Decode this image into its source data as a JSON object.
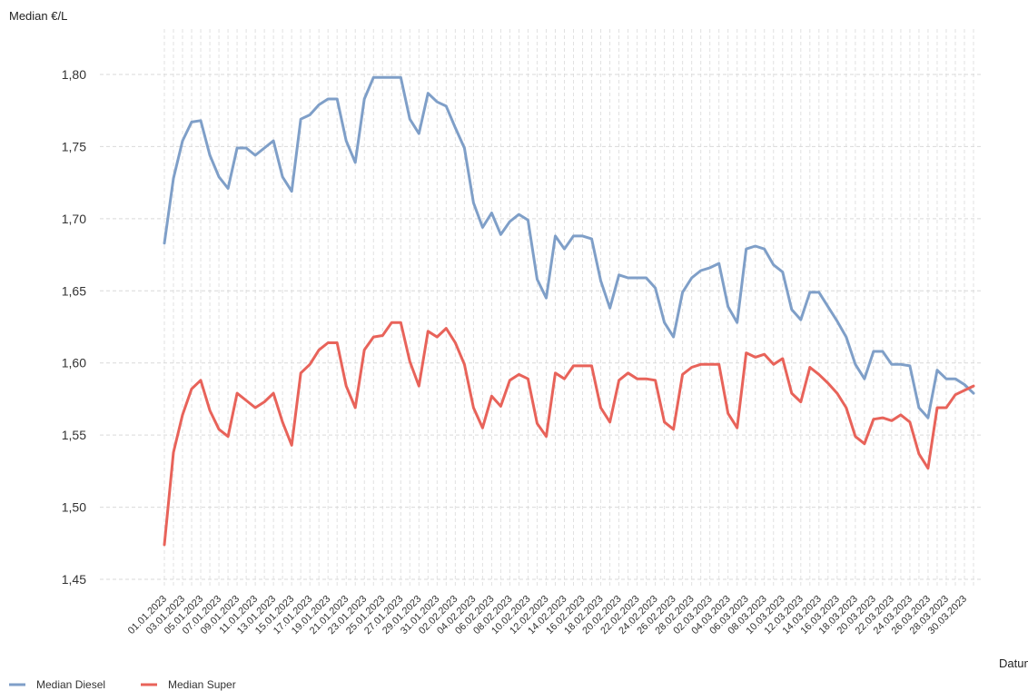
{
  "chart_data": {
    "type": "line",
    "title": "",
    "ylabel": "Median €/L",
    "xlabel": "Datum",
    "ylim": [
      1.45,
      1.8
    ],
    "yticks": [
      "1,45",
      "1,50",
      "1,55",
      "1,60",
      "1,65",
      "1,70",
      "1,75",
      "1,80"
    ],
    "ytick_values": [
      1.45,
      1.5,
      1.55,
      1.6,
      1.65,
      1.7,
      1.75,
      1.8
    ],
    "grid": true,
    "legend_position": "bottom-left",
    "x_start": "01.01.2023",
    "x_end": "31.03.2023",
    "x_tick_labels": [
      "01.01.2023",
      "03.01.2023",
      "05.01.2023",
      "07.01.2023",
      "09.01.2023",
      "11.01.2023",
      "13.01.2023",
      "15.01.2023",
      "17.01.2023",
      "19.01.2023",
      "21.01.2023",
      "23.01.2023",
      "25.01.2023",
      "27.01.2023",
      "29.01.2023",
      "31.01.2023",
      "02.02.2023",
      "04.02.2023",
      "06.02.2023",
      "08.02.2023",
      "10.02.2023",
      "12.02.2023",
      "14.02.2023",
      "16.02.2023",
      "18.02.2023",
      "20.02.2023",
      "22.02.2023",
      "24.02.2023",
      "26.02.2023",
      "28.02.2023",
      "02.03.2023",
      "04.03.2023",
      "06.03.2023",
      "08.03.2023",
      "10.03.2023",
      "12.03.2023",
      "14.03.2023",
      "16.03.2023",
      "18.03.2023",
      "20.03.2023",
      "22.03.2023",
      "24.03.2023",
      "26.03.2023",
      "28.03.2023",
      "30.03.2023"
    ],
    "series": [
      {
        "name": "Median Diesel",
        "color": "#7f9fc8",
        "values": [
          1.683,
          1.728,
          1.754,
          1.767,
          1.768,
          1.744,
          1.729,
          1.721,
          1.749,
          1.749,
          1.744,
          1.749,
          1.754,
          1.729,
          1.719,
          1.769,
          1.772,
          1.779,
          1.783,
          1.783,
          1.754,
          1.739,
          1.783,
          1.798,
          1.798,
          1.798,
          1.798,
          1.769,
          1.759,
          1.787,
          1.781,
          1.778,
          1.763,
          1.749,
          1.711,
          1.694,
          1.704,
          1.689,
          1.698,
          1.703,
          1.699,
          1.658,
          1.645,
          1.688,
          1.679,
          1.688,
          1.688,
          1.686,
          1.657,
          1.638,
          1.661,
          1.659,
          1.659,
          1.659,
          1.652,
          1.628,
          1.618,
          1.649,
          1.659,
          1.664,
          1.666,
          1.669,
          1.639,
          1.628,
          1.679,
          1.681,
          1.679,
          1.668,
          1.663,
          1.637,
          1.63,
          1.649,
          1.649,
          1.639,
          1.629,
          1.618,
          1.599,
          1.589,
          1.608,
          1.608,
          1.599,
          1.599,
          1.598,
          1.569,
          1.562,
          1.595,
          1.589,
          1.589,
          1.585,
          1.579
        ]
      },
      {
        "name": "Median Super",
        "color": "#e8635a",
        "values": [
          1.474,
          1.538,
          1.564,
          1.582,
          1.588,
          1.567,
          1.554,
          1.549,
          1.579,
          1.574,
          1.569,
          1.573,
          1.579,
          1.559,
          1.543,
          1.593,
          1.599,
          1.609,
          1.614,
          1.614,
          1.584,
          1.569,
          1.609,
          1.618,
          1.619,
          1.628,
          1.628,
          1.601,
          1.584,
          1.622,
          1.618,
          1.624,
          1.614,
          1.599,
          1.569,
          1.555,
          1.577,
          1.57,
          1.588,
          1.592,
          1.589,
          1.558,
          1.549,
          1.593,
          1.589,
          1.598,
          1.598,
          1.598,
          1.569,
          1.559,
          1.588,
          1.593,
          1.589,
          1.589,
          1.588,
          1.559,
          1.554,
          1.592,
          1.597,
          1.599,
          1.599,
          1.599,
          1.565,
          1.555,
          1.607,
          1.604,
          1.606,
          1.599,
          1.603,
          1.579,
          1.573,
          1.597,
          1.592,
          1.586,
          1.579,
          1.569,
          1.549,
          1.544,
          1.561,
          1.562,
          1.56,
          1.564,
          1.559,
          1.537,
          1.527,
          1.569,
          1.569,
          1.578,
          1.581,
          1.584
        ]
      }
    ]
  }
}
